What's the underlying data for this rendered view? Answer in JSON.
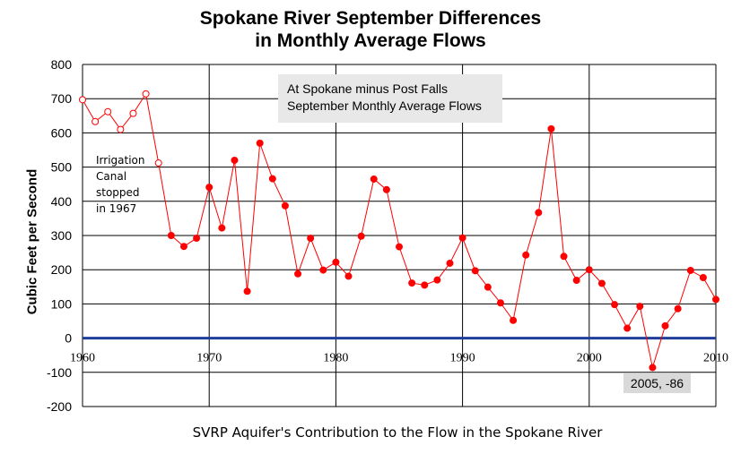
{
  "chart_data": {
    "type": "line",
    "title": "Spokane River September Differences in Monthly Average Flows",
    "title_lines": [
      "Spokane River September Differences",
      "in Monthly Average Flows"
    ],
    "xlabel": "SVRP Aquifer's Contribution  to the Flow in the Spokane River",
    "ylabel": "Cubic Feet per Second",
    "xlim": [
      1960,
      2010
    ],
    "ylim": [
      -200,
      800
    ],
    "xticks": [
      "1960",
      "1970",
      "1980",
      "1990",
      "2000",
      "2010"
    ],
    "yticks": [
      "800",
      "700",
      "600",
      "500",
      "400",
      "300",
      "200",
      "100",
      "0",
      "-100",
      "-200"
    ],
    "grid": true,
    "legend_text": [
      "At Spokane minus Post Falls",
      "September Monthly Average Flows"
    ],
    "annotation": [
      "Irrigation",
      "Canal",
      "stopped",
      "in 1967"
    ],
    "callout": "2005, -86",
    "colors": {
      "line": "#ff0000",
      "zero_line": "#1f3d99",
      "grid": "#000000"
    },
    "series": [
      {
        "x": [
          1960,
          1961,
          1962,
          1963,
          1964,
          1965,
          1966,
          1967,
          1968,
          1969,
          1970,
          1971,
          1972,
          1973,
          1974,
          1975,
          1976,
          1977,
          1978,
          1979,
          1980,
          1981,
          1982,
          1983,
          1984,
          1985,
          1986,
          1987,
          1988,
          1989,
          1990,
          1991,
          1992,
          1993,
          1994,
          1995,
          1996,
          1997,
          1998,
          1999,
          2000,
          2001,
          2002,
          2003,
          2004,
          2005,
          2006,
          2007,
          2008,
          2009,
          2010
        ],
        "values": [
          697,
          633,
          662,
          610,
          657,
          714,
          512,
          300,
          268,
          292,
          441,
          322,
          520,
          137,
          570,
          466,
          387,
          188,
          292,
          199,
          222,
          181,
          298,
          465,
          434,
          267,
          161,
          155,
          170,
          219,
          293,
          197,
          149,
          103,
          52,
          243,
          367,
          612,
          239,
          169,
          200,
          160,
          98,
          29,
          93,
          -86,
          36,
          86,
          198,
          177,
          113
        ],
        "marker_style": "hollow for 1960–1966, filled thereafter"
      }
    ]
  }
}
